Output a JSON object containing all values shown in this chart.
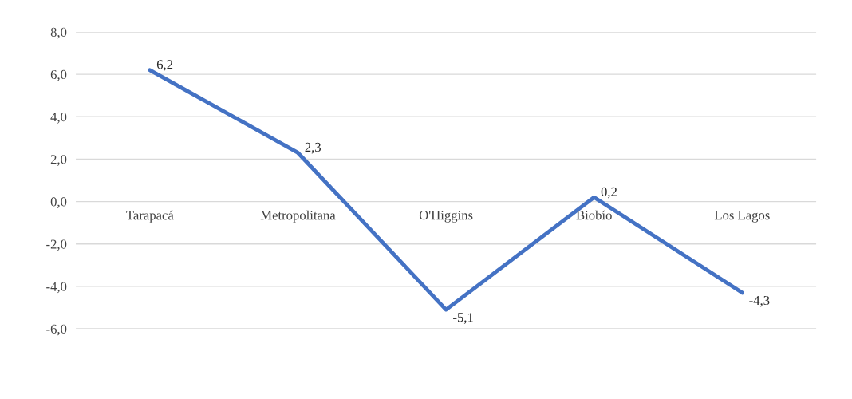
{
  "chart_data": {
    "type": "line",
    "categories": [
      "Tarapacá",
      "Metropolitana",
      "O'Higgins",
      "Biobío",
      "Los Lagos"
    ],
    "series": [
      {
        "color": "#4472c4",
        "values": [
          6.2,
          2.3,
          -5.1,
          0.2,
          -4.3
        ],
        "value_labels": [
          "6,2",
          "2,3",
          "-5,1",
          "0,2",
          "-4,3"
        ]
      }
    ],
    "ylim": [
      -6,
      8
    ],
    "yticks": [
      {
        "value": -6,
        "label": "-6,0"
      },
      {
        "value": -4,
        "label": "-4,0"
      },
      {
        "value": -2,
        "label": "-2,0"
      },
      {
        "value": 0,
        "label": "0,0"
      },
      {
        "value": 2,
        "label": "2,0"
      },
      {
        "value": 4,
        "label": "4,0"
      },
      {
        "value": 6,
        "label": "6,0"
      },
      {
        "value": 8,
        "label": "8,0"
      }
    ],
    "grid": "y",
    "legend": false,
    "marker": "none",
    "line_style": "solid"
  }
}
